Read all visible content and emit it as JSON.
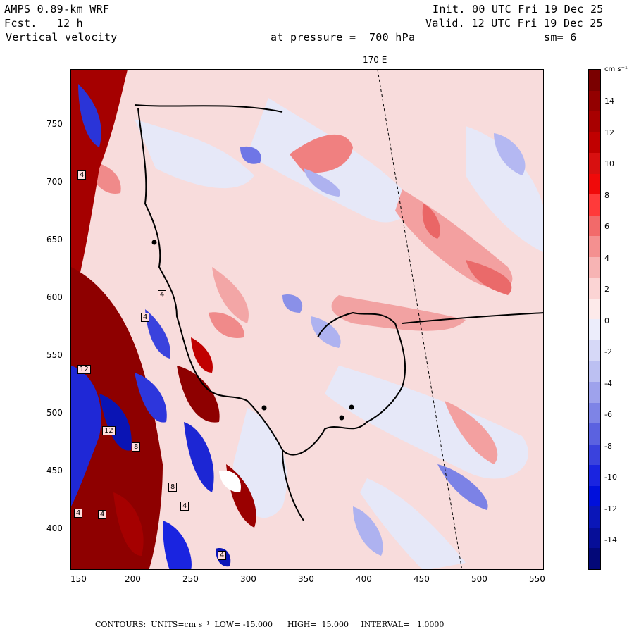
{
  "header": {
    "model": "AMPS 0.89-km WRF",
    "fcst": "Fcst.   12 h",
    "field": "Vertical velocity",
    "init": "Init. 00 UTC Fri 19 Dec 25",
    "valid": "Valid. 12 UTC Fri 19 Dec 25",
    "pressure": "at pressure =  700 hPa",
    "smooth": "sm= 6"
  },
  "map": {
    "meridian_label": "170 E",
    "x_ticks": [
      "150",
      "200",
      "250",
      "300",
      "350",
      "400",
      "450",
      "500",
      "550"
    ],
    "y_ticks": [
      "750",
      "700",
      "650",
      "600",
      "550",
      "500",
      "450",
      "400"
    ],
    "inline_labels": [
      "4",
      "4",
      "4",
      "12",
      "12",
      "8",
      "8",
      "4",
      "4",
      "4",
      "4"
    ]
  },
  "colorbar": {
    "units": "cm s⁻¹",
    "labels": [
      "14",
      "12",
      "10",
      "8",
      "6",
      "4",
      "2",
      "0",
      "-2",
      "-4",
      "-6",
      "-8",
      "-10",
      "-12",
      "-14"
    ],
    "colors": [
      "#7a0000",
      "#930000",
      "#a80000",
      "#c00000",
      "#d81010",
      "#f00a0a",
      "#ff3a3a",
      "#f26a6a",
      "#f49090",
      "#f7b4b4",
      "#fbd4d4",
      "#fdeaea",
      "#ecedfb",
      "#d6d8f7",
      "#bcc0f2",
      "#9ea2ec",
      "#7e84e6",
      "#5b62e0",
      "#3a42dd",
      "#1a24e0",
      "#0010dc",
      "#0a16b8",
      "#060e98",
      "#030878"
    ]
  },
  "footer": {
    "text": "CONTOURS:  UNITS=cm s⁻¹  LOW= -15.000      HIGH=  15.000     INTERVAL=   1.0000"
  }
}
